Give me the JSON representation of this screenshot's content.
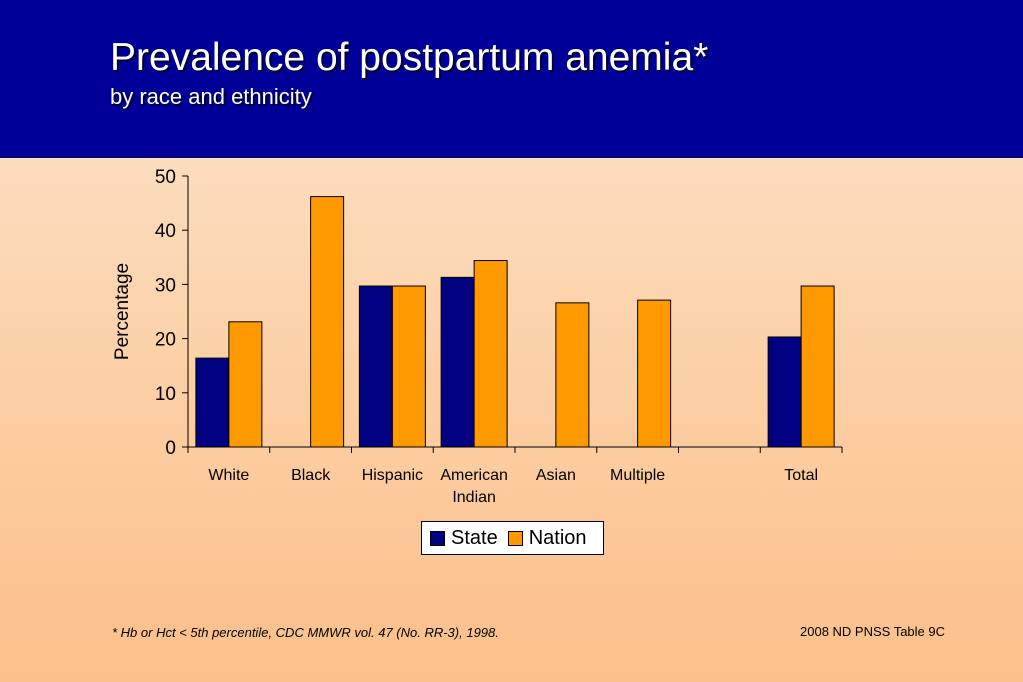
{
  "header": {
    "title": "Prevalence of postpartum anemia*",
    "subtitle": "by race and ethnicity"
  },
  "chart_data": {
    "type": "bar",
    "categories": [
      "White",
      "Black",
      "Hispanic",
      "American Indian",
      "Asian",
      "Multiple",
      "",
      "Total"
    ],
    "series": [
      {
        "name": "State",
        "color": "#000080",
        "values": [
          16.4,
          null,
          29.7,
          31.3,
          null,
          null,
          null,
          20.3
        ]
      },
      {
        "name": "Nation",
        "color": "#ff9900",
        "values": [
          23.1,
          46.2,
          29.7,
          34.4,
          26.6,
          27.1,
          null,
          29.7
        ]
      }
    ],
    "ylabel": "Percentage",
    "ylim": [
      0,
      50
    ],
    "yticks": [
      0,
      10,
      20,
      30,
      40,
      50
    ],
    "grid": false,
    "legend_position": "bottom-center"
  },
  "footnote": "*  Hb or Hct < 5th percentile, CDC MMWR vol. 47 (No. RR-3), 1998.",
  "source": "2008 ND PNSS Table 9C"
}
